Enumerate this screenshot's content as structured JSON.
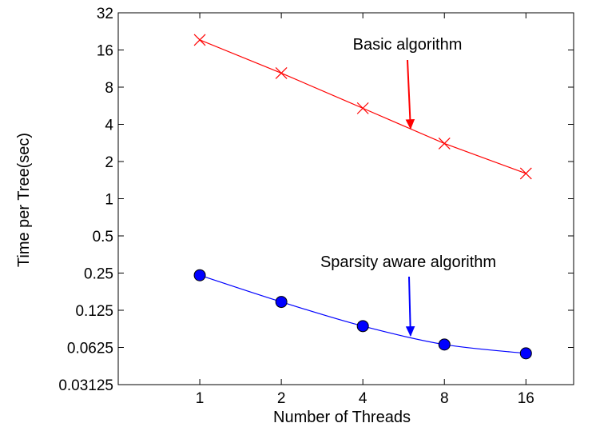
{
  "chart_data": {
    "type": "line",
    "xlabel": "Number of Threads",
    "ylabel": "Time per Tree(sec)",
    "x_scale": "log2",
    "y_scale": "log2",
    "xlim": [
      0.5,
      24
    ],
    "ylim": [
      0.03125,
      32
    ],
    "x_ticks": [
      1,
      2,
      4,
      8,
      16
    ],
    "x_tick_labels": [
      "1",
      "2",
      "4",
      "8",
      "16"
    ],
    "y_ticks": [
      0.03125,
      0.0625,
      0.125,
      0.25,
      0.5,
      1,
      2,
      4,
      8,
      16,
      32
    ],
    "y_tick_labels": [
      "0.03125",
      "0.0625",
      "0.125",
      "0.25",
      "0.5",
      "1",
      "2",
      "4",
      "8",
      "16",
      "32"
    ],
    "grid": false,
    "x": [
      1,
      2,
      4,
      8,
      16
    ],
    "series": [
      {
        "name": "Basic algorithm",
        "values": [
          19.3,
          10.4,
          5.4,
          2.8,
          1.6
        ],
        "color": "#ff0000",
        "marker": "x"
      },
      {
        "name": "Sparsity aware algorithm",
        "values": [
          0.24,
          0.146,
          0.093,
          0.066,
          0.056
        ],
        "color": "#0000ff",
        "marker": "filled-circle"
      }
    ],
    "annotations": [
      {
        "text": "Basic algorithm",
        "color": "#ff0000",
        "arrow_to": [
          6.0,
          3.7
        ]
      },
      {
        "text": "Sparsity aware algorithm",
        "color": "#0000ff",
        "arrow_to": [
          6.0,
          0.078
        ]
      }
    ]
  }
}
